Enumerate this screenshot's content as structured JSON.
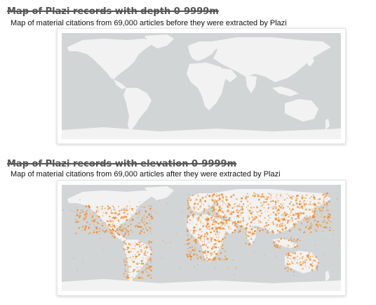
{
  "maps": [
    {
      "title": "Map of Plazi records with depth 0-9999m",
      "subtitle": "Map of material citations from 69,000 articles before they were extracted by Plazi",
      "has_points": false
    },
    {
      "title": "Map of Plazi records with elevation 0-9999m",
      "subtitle": "Map of material citations from 69,000 articles after they were extracted by Plazi",
      "has_points": true
    }
  ],
  "colors": {
    "ocean": "#d2d5d6",
    "land": "#f2f2f2",
    "points": "#f28c28"
  }
}
